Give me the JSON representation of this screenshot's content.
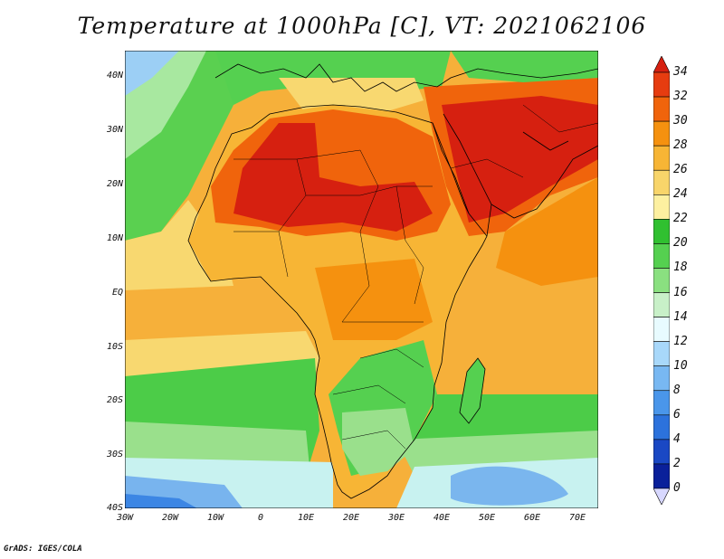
{
  "title": "Temperature at 1000hPa [C], VT: 2021062106",
  "credit": "GrADS: IGES/COLA",
  "lat_labels": [
    "40N",
    "30N",
    "20N",
    "10N",
    "EQ",
    "10S",
    "20S",
    "30S",
    "40S"
  ],
  "lon_labels": [
    "30W",
    "20W",
    "10W",
    "0",
    "10E",
    "20E",
    "30E",
    "40E",
    "50E",
    "60E",
    "70E"
  ],
  "colorbar": {
    "labels": [
      "34",
      "32",
      "30",
      "28",
      "26",
      "24",
      "22",
      "20",
      "18",
      "16",
      "14",
      "12",
      "10",
      "8",
      "6",
      "4",
      "2",
      "0"
    ],
    "colors": [
      "#d62010",
      "#e63c10",
      "#f0640c",
      "#f5910f",
      "#f7b535",
      "#f8d56a",
      "#fdf0a0",
      "#30c030",
      "#55d050",
      "#8ae080",
      "#c8f0c8",
      "#e8fbff",
      "#a8d8fa",
      "#78b8f2",
      "#4a96ea",
      "#2c72dc",
      "#1a48c4",
      "#0a209a",
      "#041070"
    ]
  }
}
